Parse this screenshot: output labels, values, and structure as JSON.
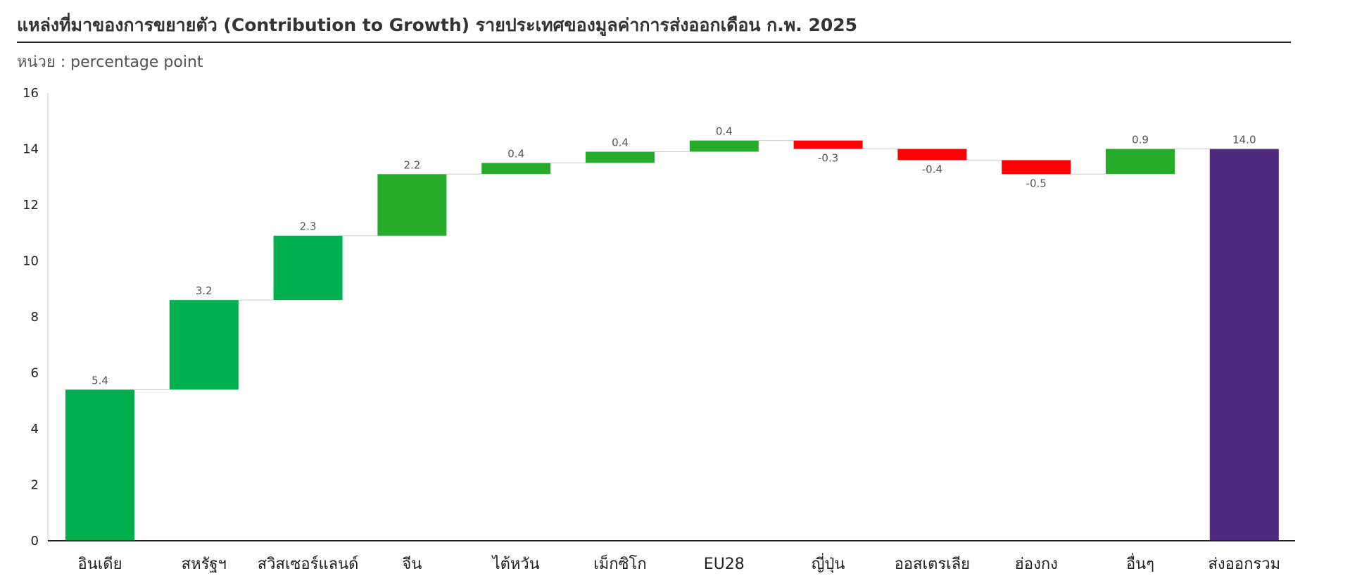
{
  "title": "แหล่งที่มาของการขยายตัว (Contribution to Growth) รายประเทศของมูลค่าการส่งออกเดือน ก.พ. 2025",
  "unit_label": "หน่วย : percentage point",
  "colors": {
    "increase": "#00b04f",
    "increase_alt": "#27ab2b",
    "decrease": "#ff0000",
    "total": "#4f2a7f",
    "connector": "#cccccc",
    "axis": "#222222"
  },
  "chart_data": {
    "type": "bar",
    "subtype": "waterfall",
    "title": "แหล่งที่มาของการขยายตัว (Contribution to Growth) รายประเทศของมูลค่าการส่งออกเดือน ก.พ. 2025",
    "ylabel": "หน่วย : percentage point",
    "ylim": [
      0,
      16
    ],
    "yticks": [
      0,
      2,
      4,
      6,
      8,
      10,
      12,
      14,
      16
    ],
    "grid": false,
    "categories": [
      "อินเดีย",
      "สหรัฐฯ",
      "สวิสเซอร์แลนด์",
      "จีน",
      "ไต้หวัน",
      "เม็กซิโก",
      "EU28",
      "ญี่ปุ่น",
      "ออสเตรเลีย",
      "ฮ่องกง",
      "อื่นๆ",
      "ส่งออกรวม"
    ],
    "values": [
      5.4,
      3.2,
      2.3,
      2.2,
      0.4,
      0.4,
      0.4,
      -0.3,
      -0.4,
      -0.5,
      0.9,
      14.0
    ],
    "value_labels": [
      "5.4",
      "3.2",
      "2.3",
      "2.2",
      "0.4",
      "0.4",
      "0.4",
      "-0.3",
      "-0.4",
      "-0.5",
      "0.9",
      "14.0"
    ],
    "bar_kinds": [
      "increase",
      "increase",
      "increase",
      "increase_alt",
      "increase_alt",
      "increase_alt",
      "increase_alt",
      "decrease",
      "decrease",
      "decrease",
      "increase_alt",
      "total"
    ]
  }
}
